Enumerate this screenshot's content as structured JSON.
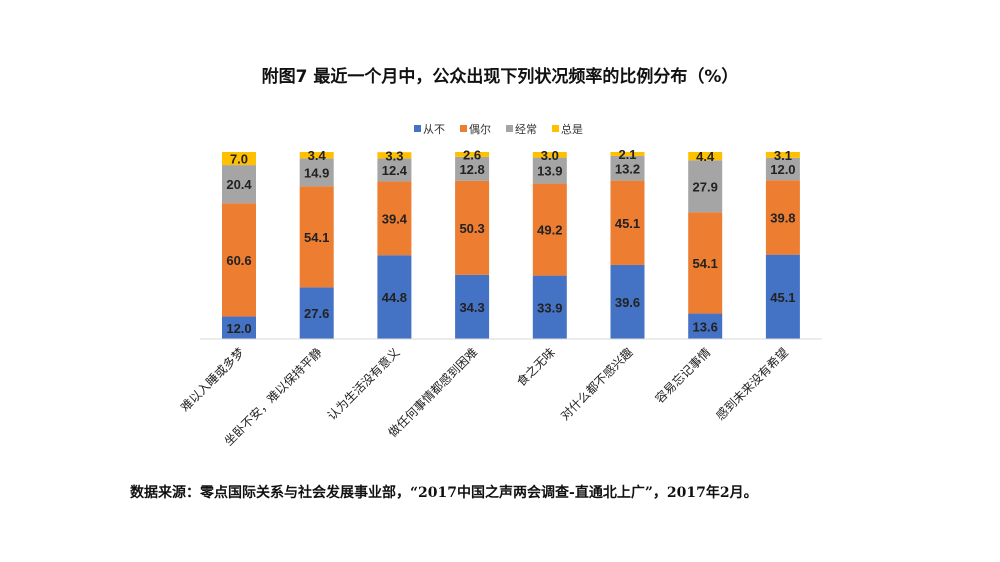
{
  "chart_data": {
    "type": "bar",
    "stacked": true,
    "title": "附图7 最近一个月中，公众出现下列状况频率的比例分布（%）",
    "xlabel": "",
    "ylabel": "",
    "ylim": [
      0,
      100
    ],
    "grid": false,
    "legend_position": "top-center",
    "categories": [
      "难以入睡或多梦",
      "坐卧不安，难以保持平静",
      "认为生活没有意义",
      "做任何事情都感到困难",
      "食之无味",
      "对什么都不感兴趣",
      "容易忘记事情",
      "感到未来没有希望"
    ],
    "series": [
      {
        "name": "从不",
        "color": "#4472C4",
        "values": [
          12.0,
          27.6,
          44.8,
          34.3,
          33.9,
          39.6,
          13.6,
          45.1
        ]
      },
      {
        "name": "偶尔",
        "color": "#ED7D31",
        "values": [
          60.6,
          54.1,
          39.4,
          50.3,
          49.2,
          45.1,
          54.1,
          39.8
        ]
      },
      {
        "name": "经常",
        "color": "#A5A5A5",
        "values": [
          20.4,
          14.9,
          12.4,
          12.8,
          13.9,
          13.2,
          27.9,
          12.0
        ]
      },
      {
        "name": "总是",
        "color": "#FFC000",
        "values": [
          7.0,
          3.4,
          3.3,
          2.6,
          3.0,
          2.1,
          4.4,
          3.1
        ]
      }
    ]
  },
  "source": "数据来源：零点国际关系与社会发展事业部，“2017中国之声两会调查-直通北上广”，2017年2月。"
}
